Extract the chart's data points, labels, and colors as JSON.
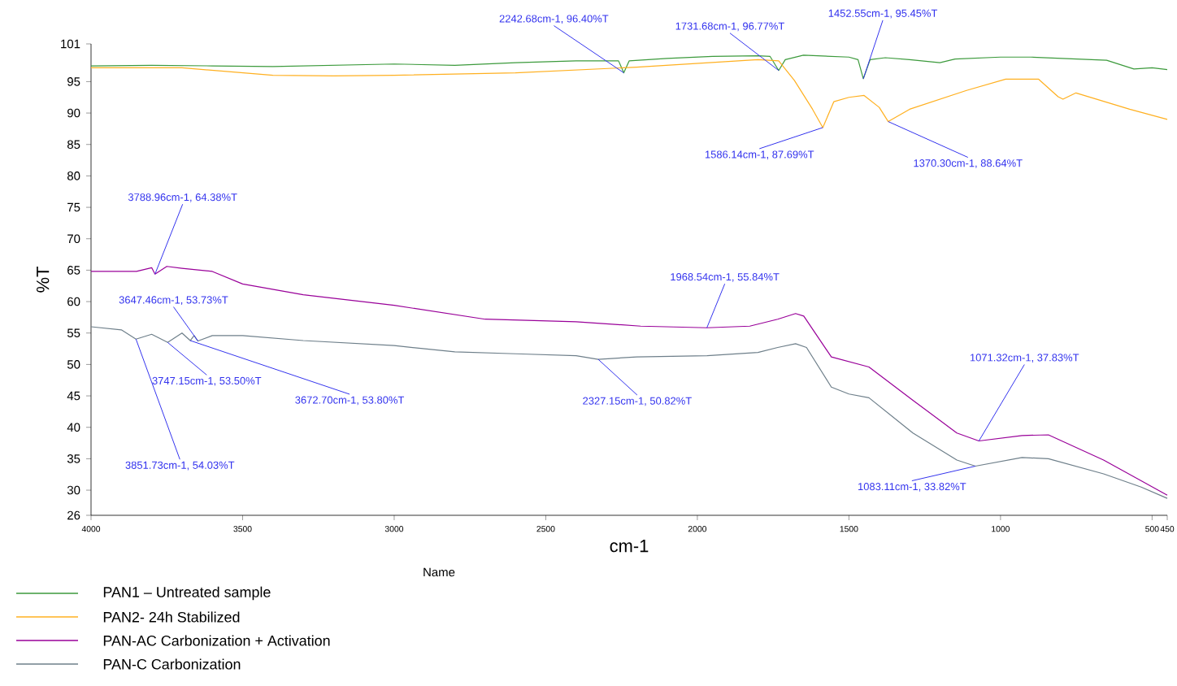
{
  "chart_data": {
    "type": "line",
    "xlabel": "cm-1",
    "ylabel": "%T",
    "legend_title": "Name",
    "legend": "bottom",
    "xlim": [
      4000,
      450
    ],
    "ylim": [
      26,
      101
    ],
    "xticks": [
      4000,
      3500,
      3000,
      2500,
      2000,
      1500,
      1000,
      500,
      450
    ],
    "yticks": [
      26,
      30,
      35,
      40,
      45,
      50,
      55,
      60,
      65,
      70,
      75,
      80,
      85,
      90,
      95,
      101
    ],
    "series": [
      {
        "name": "PAN1 –    Untreated sample",
        "color": "#3c9a3c",
        "x": [
          4000,
          3800,
          3600,
          3400,
          3200,
          3000,
          2800,
          2600,
          2400,
          2260,
          2242.68,
          2225,
          2100,
          1950,
          1800,
          1760,
          1731.68,
          1710,
          1650,
          1500,
          1470,
          1452.55,
          1430,
          1380,
          1300,
          1200,
          1150,
          1000,
          900,
          800,
          650,
          560,
          500,
          450
        ],
        "values": [
          97.5,
          97.6,
          97.5,
          97.4,
          97.6,
          97.8,
          97.6,
          98.0,
          98.3,
          98.3,
          96.4,
          98.3,
          98.7,
          99.0,
          99.1,
          99.0,
          96.77,
          98.5,
          99.2,
          98.9,
          98.5,
          95.45,
          98.5,
          98.8,
          98.5,
          98.0,
          98.6,
          98.9,
          98.9,
          98.7,
          98.4,
          97.0,
          97.2,
          96.9
        ]
      },
      {
        "name": "PAN2-      24h Stabilized",
        "color": "#ffb020",
        "x": [
          4000,
          3700,
          3400,
          3200,
          3000,
          2600,
          2200,
          1800,
          1731.68,
          1680,
          1620,
          1586.14,
          1550,
          1500,
          1450,
          1400,
          1370.3,
          1300,
          1112,
          983,
          875,
          810,
          794,
          751,
          574,
          450
        ],
        "values": [
          97.2,
          97.2,
          96.0,
          95.9,
          96.0,
          96.4,
          97.3,
          98.5,
          98.3,
          95.2,
          90.6,
          87.69,
          91.8,
          92.5,
          92.8,
          90.9,
          88.64,
          90.6,
          93.6,
          95.4,
          95.4,
          92.6,
          92.2,
          93.2,
          90.6,
          89.0
        ]
      },
      {
        "name": "PAN-AC   Carbonization + Activation",
        "color": "#990099",
        "x": [
          4000,
          3850,
          3800,
          3788.96,
          3750,
          3700,
          3600,
          3500,
          3300,
          3000,
          2700,
          2400,
          2187,
          1968.54,
          1827,
          1735,
          1676,
          1649,
          1558,
          1434,
          1289,
          1144,
          1071.32,
          929,
          842,
          660,
          536,
          450
        ],
        "values": [
          64.8,
          64.8,
          65.4,
          64.38,
          65.6,
          65.3,
          64.8,
          62.8,
          61.1,
          59.4,
          57.2,
          56.8,
          56.1,
          55.84,
          56.1,
          57.2,
          58.1,
          57.7,
          51.2,
          49.6,
          44.3,
          39.1,
          37.83,
          38.7,
          38.8,
          34.8,
          31.5,
          29.2
        ]
      },
      {
        "name": "PAN-C      Carbonization",
        "color": "#6e7f8a",
        "x": [
          4000,
          3900,
          3851.73,
          3800,
          3747.15,
          3700,
          3672.7,
          3660,
          3647.46,
          3600,
          3500,
          3300,
          3000,
          2800,
          2600,
          2400,
          2327.15,
          2200,
          1968,
          1800,
          1735,
          1676,
          1640,
          1558,
          1500,
          1434,
          1289,
          1144,
          1083.11,
          929,
          842,
          660,
          536,
          450
        ],
        "values": [
          56.0,
          55.5,
          54.03,
          54.8,
          53.5,
          55.0,
          53.8,
          54.6,
          53.73,
          54.6,
          54.6,
          53.8,
          53.0,
          52.0,
          51.7,
          51.4,
          50.82,
          51.2,
          51.4,
          51.9,
          52.7,
          53.3,
          52.7,
          46.4,
          45.3,
          44.7,
          39.1,
          34.8,
          33.82,
          35.2,
          35.0,
          32.6,
          30.5,
          28.7
        ]
      }
    ],
    "annotations": [
      {
        "text": "2242.68cm-1, 96.40%T",
        "x": 2242.68,
        "y": 96.4
      },
      {
        "text": "1731.68cm-1, 96.77%T",
        "x": 1731.68,
        "y": 96.77
      },
      {
        "text": "1452.55cm-1, 95.45%T",
        "x": 1452.55,
        "y": 95.45
      },
      {
        "text": "1586.14cm-1, 87.69%T",
        "x": 1586.14,
        "y": 87.69
      },
      {
        "text": "1370.30cm-1, 88.64%T",
        "x": 1370.3,
        "y": 88.64
      },
      {
        "text": "3788.96cm-1, 64.38%T",
        "x": 3788.96,
        "y": 64.38
      },
      {
        "text": "1968.54cm-1, 55.84%T",
        "x": 1968.54,
        "y": 55.84
      },
      {
        "text": "3647.46cm-1, 53.73%T",
        "x": 3647.46,
        "y": 53.73
      },
      {
        "text": "3747.15cm-1, 53.50%T",
        "x": 3747.15,
        "y": 53.5
      },
      {
        "text": "3672.70cm-1, 53.80%T",
        "x": 3672.7,
        "y": 53.8
      },
      {
        "text": "2327.15cm-1, 50.82%T",
        "x": 2327.15,
        "y": 50.82
      },
      {
        "text": "3851.73cm-1, 54.03%T",
        "x": 3851.73,
        "y": 54.03
      },
      {
        "text": "1071.32cm-1, 37.83%T",
        "x": 1071.32,
        "y": 37.83
      },
      {
        "text": "1083.11cm-1, 33.82%T",
        "x": 1083.11,
        "y": 33.82
      }
    ]
  }
}
